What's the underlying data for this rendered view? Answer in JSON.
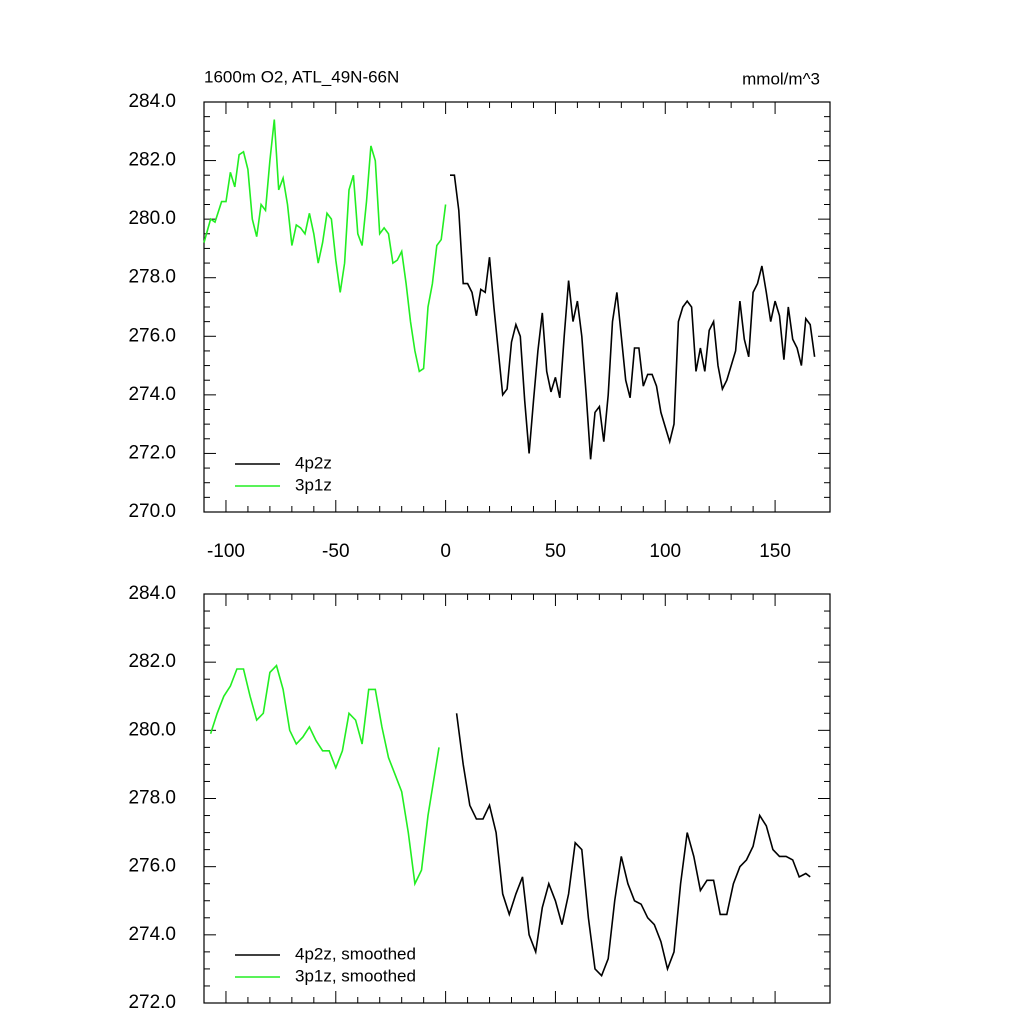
{
  "chart_data": [
    {
      "type": "line",
      "title": "1600m O2, ATL_49N-66N",
      "units": "mmol/m^3",
      "xlim": [
        -110,
        175
      ],
      "xticks": [
        -100,
        -50,
        0,
        50,
        100,
        150
      ],
      "ylim": [
        270,
        284
      ],
      "yticks": [
        {
          "value": 270,
          "label": "270.0"
        },
        {
          "value": 272,
          "label": "272.0"
        },
        {
          "value": 274,
          "label": "274.0"
        },
        {
          "value": 276,
          "label": "276.0"
        },
        {
          "value": 278,
          "label": "278.0"
        },
        {
          "value": 280,
          "label": "280.0"
        },
        {
          "value": 282,
          "label": "282.0"
        },
        {
          "value": 284,
          "label": "284.0"
        }
      ],
      "legend": "lower left",
      "series": [
        {
          "name": "4p2z",
          "color": "#000000",
          "x": [
            2,
            4,
            6,
            8,
            10,
            12,
            14,
            16,
            18,
            20,
            22,
            24,
            26,
            28,
            30,
            32,
            34,
            36,
            38,
            40,
            42,
            44,
            46,
            48,
            50,
            52,
            54,
            56,
            58,
            60,
            62,
            64,
            66,
            68,
            70,
            72,
            74,
            76,
            78,
            80,
            82,
            84,
            86,
            88,
            90,
            92,
            94,
            96,
            98,
            100,
            102,
            104,
            106,
            108,
            110,
            112,
            114,
            116,
            118,
            120,
            122,
            124,
            126,
            128,
            130,
            132,
            134,
            136,
            138,
            140,
            142,
            144,
            146,
            148,
            150,
            152,
            154,
            156,
            158,
            160,
            162,
            164,
            166,
            168
          ],
          "values": [
            281.5,
            281.5,
            280.3,
            277.8,
            277.8,
            277.5,
            276.7,
            277.6,
            277.5,
            278.7,
            277.0,
            275.5,
            274.0,
            274.2,
            275.8,
            276.4,
            276.0,
            273.8,
            272.0,
            273.8,
            275.5,
            276.8,
            274.8,
            274.1,
            274.6,
            273.9,
            276.0,
            277.9,
            276.5,
            277.2,
            276.0,
            274.0,
            271.8,
            273.4,
            273.6,
            272.4,
            274.0,
            276.5,
            277.5,
            276.0,
            274.5,
            273.9,
            275.6,
            275.6,
            274.3,
            274.7,
            274.7,
            274.3,
            273.4,
            272.9,
            272.4,
            273.0,
            276.5,
            277.0,
            277.2,
            277.0,
            274.8,
            275.6,
            274.8,
            276.2,
            276.5,
            275.0,
            274.2,
            274.5,
            275.0,
            275.5,
            277.2,
            275.9,
            275.3,
            277.5,
            277.8,
            278.4,
            277.5,
            276.5,
            277.2,
            276.7,
            275.2,
            277.0,
            275.9,
            275.6,
            275.0,
            276.6,
            276.4,
            275.3
          ]
        },
        {
          "name": "3p1z",
          "color": "#22ee22",
          "x": [
            -110,
            -107,
            -105,
            -102,
            -100,
            -98,
            -96,
            -94,
            -92,
            -90,
            -88,
            -86,
            -84,
            -82,
            -80,
            -78,
            -76,
            -74,
            -72,
            -70,
            -68,
            -66,
            -64,
            -62,
            -60,
            -58,
            -56,
            -54,
            -52,
            -50,
            -48,
            -46,
            -44,
            -42,
            -40,
            -38,
            -36,
            -34,
            -32,
            -30,
            -28,
            -26,
            -24,
            -22,
            -20,
            -18,
            -16,
            -14,
            -12,
            -10,
            -8,
            -6,
            -4,
            -2,
            0
          ],
          "values": [
            279.2,
            280.0,
            279.9,
            280.6,
            280.6,
            281.6,
            281.1,
            282.2,
            282.3,
            281.7,
            280.0,
            279.4,
            280.5,
            280.3,
            282.0,
            283.4,
            281.0,
            281.4,
            280.5,
            279.1,
            279.8,
            279.7,
            279.5,
            280.2,
            279.5,
            278.5,
            279.2,
            280.2,
            280.0,
            278.6,
            277.5,
            278.5,
            281.0,
            281.5,
            279.5,
            279.1,
            280.6,
            282.5,
            282.0,
            279.5,
            279.7,
            279.5,
            278.5,
            278.6,
            278.9,
            277.8,
            276.5,
            275.5,
            274.8,
            274.9,
            277.0,
            277.8,
            279.1,
            279.3,
            280.5
          ]
        }
      ]
    },
    {
      "type": "line",
      "xlim": [
        -110,
        175
      ],
      "ylim": [
        272,
        284
      ],
      "yticks": [
        {
          "value": 272,
          "label": "272.0"
        },
        {
          "value": 274,
          "label": "274.0"
        },
        {
          "value": 276,
          "label": "276.0"
        },
        {
          "value": 278,
          "label": "278.0"
        },
        {
          "value": 280,
          "label": "280.0"
        },
        {
          "value": 282,
          "label": "282.0"
        },
        {
          "value": 284,
          "label": "284.0"
        }
      ],
      "legend": "lower left",
      "series": [
        {
          "name": "4p2z, smoothed",
          "color": "#000000",
          "x": [
            5,
            8,
            11,
            14,
            17,
            20,
            23,
            26,
            29,
            32,
            35,
            38,
            41,
            44,
            47,
            50,
            53,
            56,
            59,
            62,
            65,
            68,
            71,
            74,
            77,
            80,
            83,
            86,
            89,
            92,
            95,
            98,
            101,
            104,
            107,
            110,
            113,
            116,
            119,
            122,
            125,
            128,
            131,
            134,
            137,
            140,
            143,
            146,
            149,
            152,
            155,
            158,
            161,
            164,
            166
          ],
          "values": [
            280.5,
            279.0,
            277.8,
            277.4,
            277.4,
            277.8,
            277.0,
            275.2,
            274.6,
            275.2,
            275.7,
            274.0,
            273.5,
            274.8,
            275.5,
            275.0,
            274.3,
            275.2,
            276.7,
            276.5,
            274.5,
            273.0,
            272.8,
            273.3,
            275.0,
            276.3,
            275.5,
            275.0,
            274.9,
            274.5,
            274.3,
            273.8,
            273.0,
            273.5,
            275.5,
            277.0,
            276.3,
            275.3,
            275.6,
            275.6,
            274.6,
            274.6,
            275.5,
            276.0,
            276.2,
            276.6,
            277.5,
            277.2,
            276.5,
            276.3,
            276.3,
            276.2,
            275.7,
            275.8,
            275.7
          ]
        },
        {
          "name": "3p1z, smoothed",
          "color": "#22ee22",
          "x": [
            -107,
            -104,
            -101,
            -98,
            -95,
            -92,
            -89,
            -86,
            -83,
            -80,
            -77,
            -74,
            -71,
            -68,
            -65,
            -62,
            -59,
            -56,
            -53,
            -50,
            -47,
            -44,
            -41,
            -38,
            -35,
            -32,
            -29,
            -26,
            -23,
            -20,
            -17,
            -14,
            -11,
            -8,
            -5,
            -3
          ],
          "values": [
            279.9,
            280.5,
            281.0,
            281.3,
            281.8,
            281.8,
            281.0,
            280.3,
            280.5,
            281.7,
            281.9,
            281.2,
            280.0,
            279.6,
            279.8,
            280.1,
            279.7,
            279.4,
            279.4,
            278.9,
            279.4,
            280.5,
            280.3,
            279.6,
            281.2,
            281.2,
            280.1,
            279.2,
            278.7,
            278.2,
            277.0,
            275.5,
            275.9,
            277.5,
            278.7,
            279.5
          ]
        }
      ]
    }
  ]
}
